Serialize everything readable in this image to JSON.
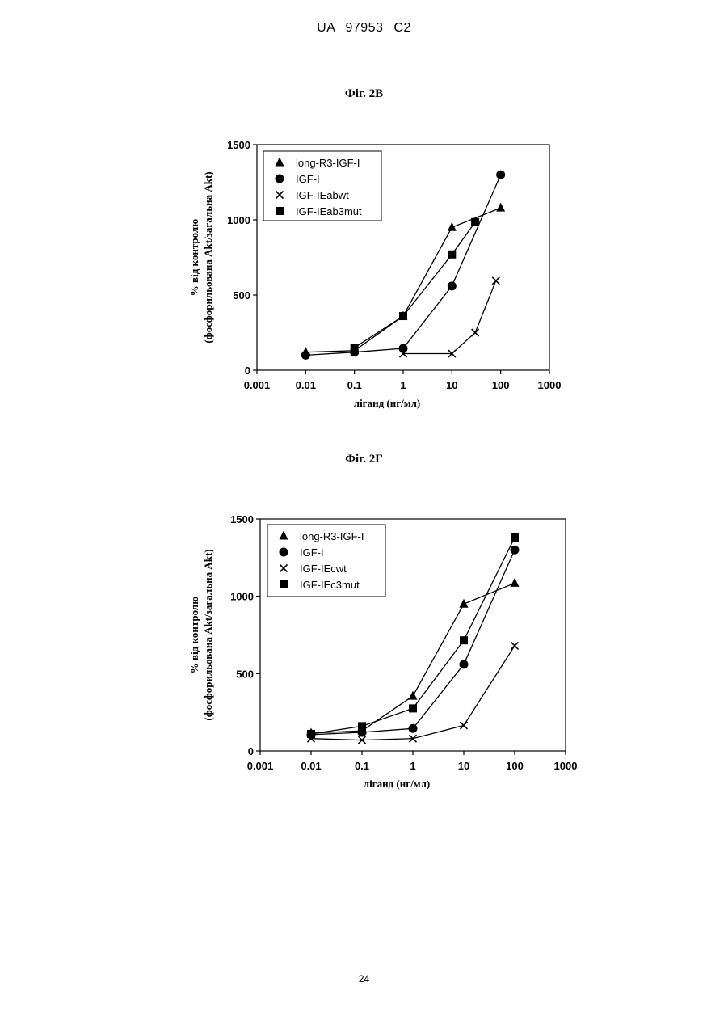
{
  "header": {
    "document_id": "UA   97953   C2"
  },
  "page_number": "24",
  "chart_data": [
    {
      "type": "scatter",
      "caption": "Фіг. 2В",
      "xscale": "log",
      "xlim": [
        0.001,
        1000
      ],
      "ylim": [
        0,
        1500
      ],
      "xticks": [
        "0.001",
        "0.01",
        "0.1",
        "1",
        "10",
        "100",
        "1000"
      ],
      "yticks": [
        "0",
        "500",
        "1000",
        "1500"
      ],
      "xlabel": "ліганд (нг/мл)",
      "ylabel_lines": [
        "% від контролю",
        "(фосфорильована Akt/загальна Akt)"
      ],
      "legend_position": "top-left",
      "grid": false,
      "series": [
        {
          "name": "long-R3-IGF-I",
          "marker": "triangle",
          "x": [
            0.01,
            0.1,
            1,
            10,
            100
          ],
          "y": [
            120,
            130,
            360,
            950,
            1080
          ]
        },
        {
          "name": "IGF-I",
          "marker": "circle",
          "x": [
            0.01,
            0.1,
            1,
            10,
            100
          ],
          "y": [
            100,
            120,
            145,
            560,
            1300
          ]
        },
        {
          "name": "IGF-IEabwt",
          "marker": "cross",
          "x": [
            1,
            10,
            30,
            80
          ],
          "y": [
            110,
            110,
            250,
            595
          ]
        },
        {
          "name": "IGF-IEab3mut",
          "marker": "square",
          "x": [
            0.1,
            1,
            10,
            30
          ],
          "y": [
            150,
            360,
            770,
            985
          ]
        }
      ]
    },
    {
      "type": "scatter",
      "caption": "Фіг. 2Г",
      "xscale": "log",
      "xlim": [
        0.001,
        1000
      ],
      "ylim": [
        0,
        1500
      ],
      "xticks": [
        "0.001",
        "0.01",
        "0.1",
        "1",
        "10",
        "100",
        "1000"
      ],
      "yticks": [
        "0",
        "500",
        "1000",
        "1500"
      ],
      "xlabel": "ліганд (нг/мл)",
      "ylabel_lines": [
        "% від контролю",
        "(фосфорильована Akt/загальна Akt)"
      ],
      "legend_position": "top-left",
      "grid": false,
      "series": [
        {
          "name": "long-R3-IGF-I",
          "marker": "triangle",
          "x": [
            0.01,
            0.1,
            1,
            10,
            100
          ],
          "y": [
            115,
            130,
            355,
            950,
            1085
          ]
        },
        {
          "name": "IGF-I",
          "marker": "circle",
          "x": [
            0.01,
            0.1,
            1,
            10,
            100
          ],
          "y": [
            105,
            120,
            145,
            560,
            1300
          ]
        },
        {
          "name": "IGF-IEcwt",
          "marker": "cross",
          "x": [
            0.01,
            0.1,
            1,
            10,
            100
          ],
          "y": [
            80,
            70,
            80,
            165,
            680
          ]
        },
        {
          "name": "IGF-IEc3mut",
          "marker": "square",
          "x": [
            0.01,
            0.1,
            1,
            10,
            100
          ],
          "y": [
            110,
            160,
            275,
            715,
            1380
          ]
        }
      ]
    }
  ]
}
